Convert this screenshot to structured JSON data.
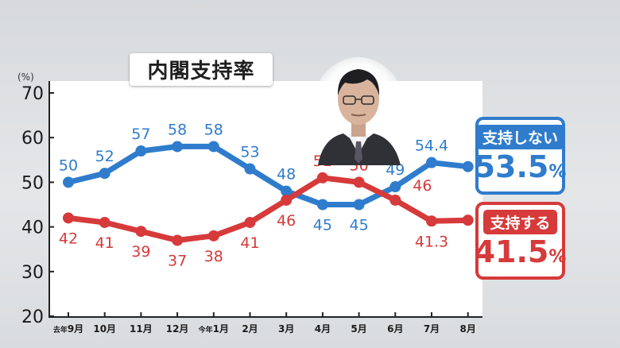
{
  "chart_data": {
    "type": "line",
    "title": "内閣支持率",
    "yunit": "(%)",
    "ylim": [
      20,
      70
    ],
    "yticks": [
      20,
      30,
      40,
      50,
      60,
      70
    ],
    "grid": false,
    "categories": [
      "去年9月",
      "10月",
      "11月",
      "12月",
      "今年1月",
      "2月",
      "3月",
      "4月",
      "5月",
      "6月",
      "7月",
      "8月"
    ],
    "series": [
      {
        "name": "支持しない",
        "color": "#2f7ccd",
        "values": [
          50,
          52,
          57,
          58,
          58,
          53,
          48,
          45,
          45,
          49,
          54.4,
          53.5
        ],
        "labels": [
          "50",
          "52",
          "57",
          "58",
          "58",
          "53",
          "48",
          "45",
          "45",
          "49",
          "54.4",
          ""
        ],
        "label_pos": [
          "above",
          "above",
          "above",
          "above",
          "above",
          "above",
          "above",
          "below",
          "below",
          "above",
          "above",
          "none"
        ]
      },
      {
        "name": "支持する",
        "color": "#d63a3a",
        "values": [
          42,
          41,
          39,
          37,
          38,
          41,
          46,
          51,
          50,
          46,
          41.3,
          41.5
        ],
        "labels": [
          "42",
          "41",
          "39",
          "37",
          "38",
          "41",
          "46",
          "51",
          "50",
          "46",
          "41.3",
          ""
        ],
        "label_pos": [
          "below",
          "below",
          "below",
          "below",
          "below",
          "below",
          "below",
          "above",
          "above",
          "right",
          "below",
          "none"
        ]
      }
    ],
    "legend": {
      "oppose": {
        "label": "支持しない",
        "value": "53.5",
        "unit": "%"
      },
      "support": {
        "label": "支持する",
        "value": "41.5",
        "unit": "%"
      }
    }
  }
}
